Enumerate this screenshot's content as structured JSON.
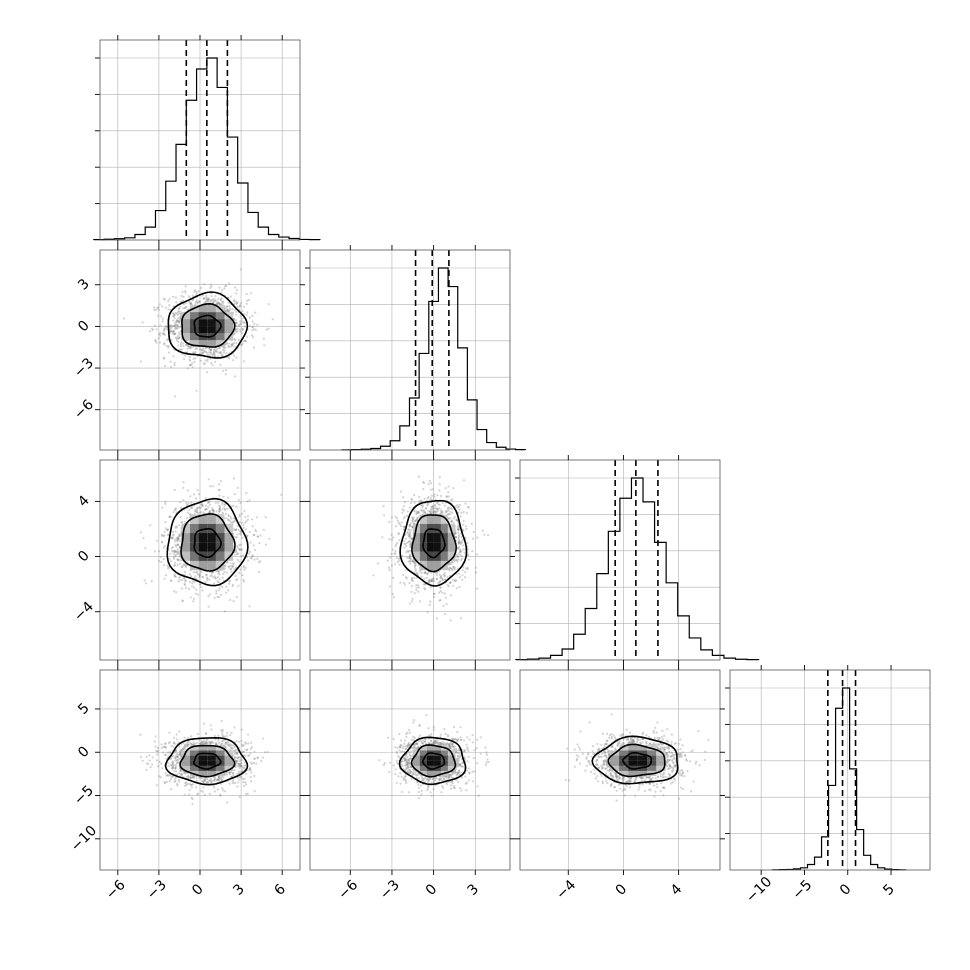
{
  "chart_data": {
    "type": "corner",
    "n_params": 4,
    "colors": {
      "hist": "#000000",
      "contour": "#000000",
      "density_dark": "#000000",
      "density_light": "#d8d8d8",
      "samples": "#808080",
      "grid": "#b0b0b0"
    },
    "grid": true,
    "params": [
      {
        "index": 0,
        "mean": 0.5,
        "std": 1.5,
        "range": [
          -7.3,
          7.3
        ],
        "ticks": [
          -6,
          -3,
          0,
          3,
          6
        ],
        "tick_labels": [
          "−6",
          "−3",
          "0",
          "3",
          "6"
        ],
        "quantiles": [
          -1.0,
          0.5,
          2.0
        ],
        "hist_density": [
          0.002,
          0.004,
          0.007,
          0.012,
          0.03,
          0.07,
          0.16,
          0.32,
          0.52,
          0.76,
          0.93,
          0.99,
          0.83,
          0.56,
          0.31,
          0.15,
          0.07,
          0.03,
          0.016,
          0.008,
          0.003,
          0.002
        ]
      },
      {
        "index": 1,
        "mean": 0.0,
        "std": 1.2,
        "range": [
          -8.9,
          5.5
        ],
        "ticks": [
          -6,
          -3,
          0,
          3
        ],
        "tick_labels": [
          "−6",
          "−3",
          "0",
          "3"
        ],
        "quantiles": [
          -1.3,
          -0.1,
          1.1
        ],
        "hist_density": [
          0.001,
          0.002,
          0.004,
          0.008,
          0.02,
          0.05,
          0.13,
          0.28,
          0.52,
          0.8,
          0.98,
          0.88,
          0.55,
          0.27,
          0.11,
          0.04,
          0.015,
          0.005,
          0.002
        ]
      },
      {
        "index": 2,
        "mean": 1.0,
        "std": 1.6,
        "range": [
          -7.5,
          7.0
        ],
        "ticks": [
          -4,
          0,
          4
        ],
        "tick_labels": [
          "−4",
          "0",
          "4"
        ],
        "quantiles": [
          -0.6,
          0.9,
          2.5
        ],
        "hist_density": [
          0.002,
          0.005,
          0.01,
          0.025,
          0.06,
          0.14,
          0.28,
          0.47,
          0.7,
          0.88,
          0.99,
          0.86,
          0.64,
          0.42,
          0.24,
          0.12,
          0.055,
          0.025,
          0.01,
          0.004,
          0.002
        ]
      },
      {
        "index": 3,
        "mean": -1.0,
        "std": 1.4,
        "range": [
          -13.6,
          9.5
        ],
        "ticks": [
          -10,
          -5,
          0,
          5
        ],
        "tick_labels": [
          "−10",
          "−5",
          "0",
          "5"
        ],
        "quantiles": [
          -2.3,
          -0.6,
          0.9
        ],
        "hist_density": [
          0.001,
          0.002,
          0.003,
          0.006,
          0.012,
          0.03,
          0.07,
          0.18,
          0.46,
          0.88,
          0.99,
          0.55,
          0.22,
          0.08,
          0.03,
          0.012,
          0.005,
          0.002,
          0.001
        ]
      }
    ],
    "pairs": [
      {
        "row": 1,
        "col": 0
      },
      {
        "row": 2,
        "col": 0
      },
      {
        "row": 2,
        "col": 1
      },
      {
        "row": 3,
        "col": 0
      },
      {
        "row": 3,
        "col": 1
      },
      {
        "row": 3,
        "col": 2
      }
    ],
    "contour_levels_sigma": [
      0.5,
      1.0,
      1.5
    ]
  }
}
